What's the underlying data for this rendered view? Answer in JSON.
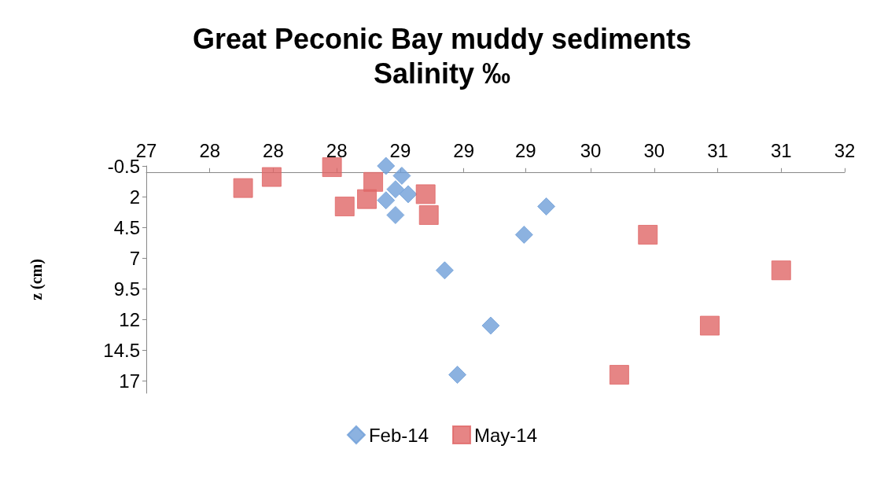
{
  "chart_data": {
    "type": "scatter",
    "title": "Great Peconic Bay muddy sediments\nSalinity ‰",
    "ylabel": "z (cm)",
    "xlim": [
      27.1,
      31.5
    ],
    "xticks": [
      {
        "value": 27.1,
        "label": "27"
      },
      {
        "value": 27.5,
        "label": "28"
      },
      {
        "value": 27.9,
        "label": "28"
      },
      {
        "value": 28.3,
        "label": "28"
      },
      {
        "value": 28.7,
        "label": "29"
      },
      {
        "value": 29.1,
        "label": "29"
      },
      {
        "value": 29.49,
        "label": "29"
      },
      {
        "value": 29.9,
        "label": "30"
      },
      {
        "value": 30.3,
        "label": "30"
      },
      {
        "value": 30.7,
        "label": "31"
      },
      {
        "value": 31.1,
        "label": "31"
      },
      {
        "value": 31.5,
        "label": "32"
      }
    ],
    "ylim": [
      18,
      -0.5
    ],
    "yticks": [
      -0.5,
      2,
      4.5,
      7,
      9.5,
      12,
      14.5,
      17
    ],
    "grid": false,
    "legend": "bottom",
    "series": [
      {
        "name": "Feb-14",
        "color": "#6f9fd8",
        "marker": "diamond",
        "x": [
          28.61,
          28.71,
          28.67,
          28.75,
          28.61,
          28.67,
          29.62,
          29.48,
          28.98,
          29.27,
          29.06
        ],
        "values": [
          -0.5,
          0.3,
          1.4,
          1.8,
          2.3,
          3.5,
          2.8,
          5.1,
          8,
          12.5,
          16.5
        ]
      },
      {
        "name": "May-14",
        "color": "#e06666",
        "marker": "square",
        "x": [
          27.71,
          27.89,
          28.27,
          28.53,
          28.35,
          28.49,
          28.86,
          28.88,
          30.26,
          31.1,
          30.65,
          30.08
        ],
        "values": [
          1.3,
          0.4,
          -0.4,
          0.8,
          2.8,
          2.2,
          1.8,
          3.5,
          5.1,
          8,
          12.5,
          16.5
        ]
      }
    ]
  }
}
